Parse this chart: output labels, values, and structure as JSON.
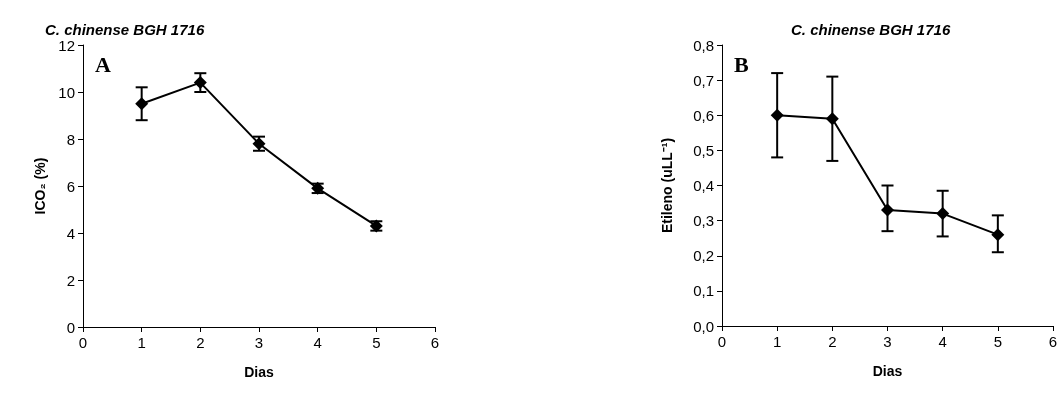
{
  "chart_data": [
    {
      "type": "line",
      "title": "C. chinense BGH 1716",
      "xlabel": "Dias",
      "ylabel": "ICO₂ (%)",
      "annotations": [
        "A"
      ],
      "x": [
        1,
        2,
        3,
        4,
        5
      ],
      "series": [
        {
          "color": "#000000",
          "values": [
            9.5,
            10.4,
            7.8,
            5.9,
            4.3
          ],
          "errors": [
            0.7,
            0.4,
            0.3,
            0.2,
            0.2
          ]
        }
      ],
      "xlim": [
        0,
        6
      ],
      "xticks": [
        0,
        1,
        2,
        3,
        4,
        5,
        6
      ],
      "ylim": [
        0,
        12
      ],
      "yticks": [
        0,
        2,
        4,
        6,
        8,
        10,
        12
      ],
      "marker": "diamond",
      "line_style": "solid",
      "grid": false
    },
    {
      "type": "line",
      "title": "C. chinense BGH 1716",
      "xlabel": "Dias",
      "ylabel": "Etileno (uLL⁻¹)",
      "annotations": [
        "B"
      ],
      "x": [
        1,
        2,
        3,
        4,
        5
      ],
      "series": [
        {
          "color": "#000000",
          "values": [
            0.6,
            0.59,
            0.33,
            0.32,
            0.26
          ],
          "errors": [
            [
              0.48,
              0.72
            ],
            [
              0.47,
              0.71
            ],
            [
              0.27,
              0.4
            ],
            [
              0.255,
              0.385
            ],
            [
              0.21,
              0.315
            ]
          ]
        }
      ],
      "xlim": [
        0,
        6
      ],
      "xticks": [
        0,
        1,
        2,
        3,
        4,
        5,
        6
      ],
      "ylim": [
        0,
        0.8
      ],
      "yticks": [
        {
          "value": 0,
          "label": "0,0"
        },
        {
          "value": 0.1,
          "label": "0,1"
        },
        {
          "value": 0.2,
          "label": "0,2"
        },
        {
          "value": 0.3,
          "label": "0,3"
        },
        {
          "value": 0.4,
          "label": "0,4"
        },
        {
          "value": 0.5,
          "label": "0,5"
        },
        {
          "value": 0.6,
          "label": "0,6"
        },
        {
          "value": 0.7,
          "label": "0,7"
        },
        {
          "value": 0.8,
          "label": "0,8"
        }
      ],
      "marker": "diamond",
      "line_style": "solid",
      "grid": false
    }
  ]
}
